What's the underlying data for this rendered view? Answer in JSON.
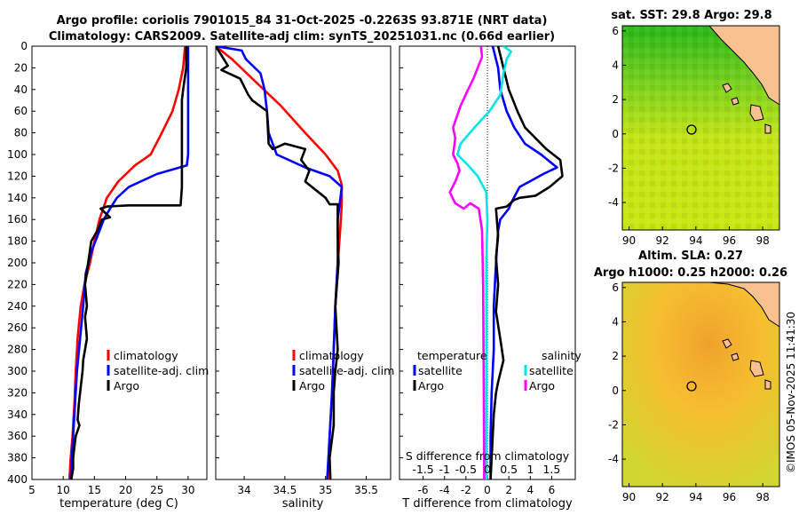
{
  "header": {
    "title_line1": "Argo profile: coriolis 7901015_84 31-Oct-2025 -0.2263S 93.871E (NRT data)",
    "title_line2": "Climatology: CARS2009. Satellite-adj clim: synTS_20251031.nc (0.66d earlier)"
  },
  "depth_axis": {
    "ticks": [
      0,
      20,
      40,
      60,
      80,
      100,
      120,
      140,
      160,
      180,
      200,
      220,
      240,
      260,
      280,
      300,
      320,
      340,
      360,
      380,
      400
    ],
    "ylim": [
      400,
      0
    ]
  },
  "colors": {
    "climatology": "#ff0000",
    "satellite": "#0000ff",
    "argo": "#000000",
    "satellite_s": "#00e5e5",
    "argo_s": "#ff00ff",
    "land": "#f9c18f"
  },
  "chart_data": [
    {
      "id": "temperature",
      "type": "line",
      "xlabel": "temperature (deg C)",
      "xlim": [
        5,
        33
      ],
      "xticks": [
        5,
        10,
        15,
        20,
        25,
        30
      ],
      "legend": [
        "climatology",
        "satellite-adj. clim",
        "Argo"
      ],
      "series": [
        {
          "name": "climatology",
          "color": "#ff0000",
          "x": [
            29.5,
            29.2,
            28.5,
            27.5,
            25.8,
            24,
            21.5,
            18.8,
            17,
            15.8,
            15,
            14.3,
            13.4,
            12.8,
            12.3,
            12,
            11.8,
            11.5,
            11.2,
            11
          ],
          "y": [
            0,
            20,
            40,
            60,
            80,
            100,
            110,
            125,
            140,
            160,
            180,
            200,
            220,
            240,
            270,
            300,
            330,
            360,
            380,
            400
          ]
        },
        {
          "name": "satellite-adj. clim",
          "color": "#0000ff",
          "x": [
            30,
            30,
            30,
            30,
            30,
            30,
            29.8,
            25,
            20.5,
            18.6,
            17.5,
            16.5,
            15.5,
            14.5,
            13.6,
            13.2,
            12.7,
            12.2,
            11.8,
            11.5,
            11.2
          ],
          "y": [
            0,
            20,
            40,
            60,
            80,
            100,
            110,
            118,
            130,
            140,
            150,
            160,
            175,
            190,
            210,
            240,
            270,
            300,
            340,
            370,
            400
          ]
        },
        {
          "name": "Argo",
          "color": "#000000",
          "x": [
            29.7,
            29.7,
            29.2,
            29,
            29,
            29,
            29,
            29,
            28.8,
            20.5,
            17,
            16,
            17.5,
            16.2,
            15.5,
            14.5,
            14,
            13.5,
            13.8,
            13.5,
            13.8,
            13.2,
            13.1,
            12.5,
            12.3,
            12.6,
            12,
            11.8,
            11.6,
            11.6,
            11.3
          ],
          "y": [
            0,
            20,
            40,
            50,
            80,
            100,
            115,
            130,
            147,
            147,
            148,
            150,
            158,
            160,
            170,
            180,
            200,
            220,
            240,
            250,
            270,
            290,
            300,
            330,
            345,
            350,
            360,
            370,
            380,
            390,
            400
          ]
        }
      ]
    },
    {
      "id": "salinity",
      "type": "line",
      "xlabel": "salinity",
      "xlim": [
        33.65,
        35.8
      ],
      "xticks": [
        34,
        34.5,
        35,
        35.5
      ],
      "legend": [
        "climatology",
        "satellite-adj. clim",
        "Argo"
      ],
      "series": [
        {
          "name": "climatology",
          "color": "#ff0000",
          "x": [
            33.65,
            33.85,
            34.1,
            34.45,
            34.75,
            35.0,
            35.15,
            35.2,
            35.2,
            35.18,
            35.15,
            35.12,
            35.1,
            35.08,
            35.05,
            35.03
          ],
          "y": [
            0,
            12,
            30,
            55,
            80,
            100,
            115,
            128,
            145,
            170,
            200,
            240,
            280,
            320,
            360,
            400
          ]
        },
        {
          "name": "satellite-adj. clim",
          "color": "#0000ff",
          "x": [
            33.65,
            33.97,
            34.02,
            34.2,
            34.25,
            34.28,
            34.3,
            34.4,
            34.75,
            35.05,
            35.2,
            35.15,
            35.15,
            35.12,
            35.1,
            35.08,
            35.05,
            35.02
          ],
          "y": [
            0,
            4,
            12,
            25,
            40,
            60,
            80,
            100,
            112,
            120,
            130,
            160,
            200,
            240,
            280,
            320,
            360,
            400
          ]
        },
        {
          "name": "Argo",
          "color": "#000000",
          "x": [
            33.65,
            33.8,
            33.72,
            33.95,
            34.05,
            34.1,
            34.28,
            34.3,
            34.35,
            34.5,
            34.75,
            34.7,
            34.8,
            34.75,
            35.0,
            35.05,
            35.15,
            35.15,
            35.16,
            35.12,
            35.15,
            35.12,
            35.1,
            35.1,
            35.05,
            35.06
          ],
          "y": [
            0,
            18,
            22,
            30,
            45,
            50,
            60,
            90,
            95,
            90,
            95,
            105,
            115,
            125,
            140,
            146,
            146,
            170,
            200,
            240,
            280,
            300,
            320,
            350,
            380,
            400
          ]
        }
      ]
    },
    {
      "id": "difference",
      "type": "line",
      "xlabel": "T difference from climatology",
      "xlim": [
        -8.2,
        8.2
      ],
      "xticks": [
        -6,
        -4,
        -2,
        0,
        2,
        4,
        6
      ],
      "s_label": "S difference from climatology",
      "s_ticks": [
        "-1.5",
        "-1",
        "-0.5",
        "0",
        "0.5",
        "1",
        "1.5"
      ],
      "legend_temperature": {
        "title": "temperature",
        "items": [
          "satellite",
          "Argo"
        ]
      },
      "legend_salinity": {
        "title": "salinity",
        "items": [
          "satellite",
          "Argo"
        ]
      },
      "series": [
        {
          "name": "temperature satellite",
          "color": "#0000ff",
          "x": [
            0.5,
            1,
            1.2,
            1.8,
            2.5,
            3.5,
            5,
            6,
            6.5,
            5.2,
            4.5,
            3,
            2.2,
            2,
            1.2,
            1,
            0.8,
            0.6,
            0.6,
            0.4,
            0.3,
            0.3
          ],
          "y": [
            0,
            20,
            40,
            60,
            75,
            90,
            100,
            108,
            112,
            118,
            122,
            130,
            145,
            150,
            160,
            170,
            200,
            240,
            280,
            320,
            360,
            400
          ]
        },
        {
          "name": "temperature Argo",
          "color": "#000000",
          "x": [
            1,
            1.5,
            2,
            2.8,
            3.5,
            4.8,
            5.5,
            6.8,
            7,
            5.8,
            4.5,
            3,
            2.5,
            1.8,
            0.8,
            1,
            0.8,
            1,
            0.8,
            1.2,
            1.5,
            1,
            0.8,
            0.6,
            0.5,
            0.4,
            0.3
          ],
          "y": [
            0,
            20,
            40,
            60,
            75,
            88,
            95,
            105,
            120,
            130,
            138,
            140,
            142,
            148,
            150,
            175,
            195,
            220,
            245,
            270,
            290,
            310,
            320,
            340,
            360,
            380,
            400
          ]
        },
        {
          "name": "salinity satellite",
          "color": "#00e5e5",
          "x": [
            1.5,
            2.2,
            1.8,
            1.5,
            1.2,
            0.2,
            -1.2,
            -2.5,
            -2.8,
            -1.8,
            -0.9,
            -0.1,
            0,
            -0.1,
            -0.1,
            -0.1
          ],
          "y": [
            0,
            5,
            12,
            25,
            45,
            60,
            75,
            90,
            100,
            110,
            120,
            135,
            160,
            200,
            300,
            400
          ]
        },
        {
          "name": "salinity Argo",
          "color": "#ff00ff",
          "x": [
            -0.6,
            -0.5,
            -0.9,
            -1.3,
            -1.8,
            -2.5,
            -3.2,
            -3.0,
            -3.2,
            -2.8,
            -2.6,
            -3.0,
            -3.5,
            -3.0,
            -2.2,
            -1.6,
            -0.8,
            -0.5,
            -0.4,
            -0.35,
            -0.3
          ],
          "y": [
            0,
            10,
            20,
            30,
            40,
            55,
            75,
            85,
            100,
            108,
            115,
            125,
            135,
            145,
            150,
            145,
            150,
            170,
            220,
            300,
            400
          ]
        }
      ]
    }
  ],
  "sst_map": {
    "title": "sat. SST: 29.8 Argo: 29.8",
    "xticks": [
      "90",
      "92",
      "94",
      "96",
      "98"
    ],
    "yticks": [
      "6",
      "4",
      "2",
      "0",
      "-2",
      "-4"
    ]
  },
  "sla_map": {
    "title_line1": "Altim. SLA: 0.27",
    "title_line2": "Argo h1000: 0.25 h2000: 0.26",
    "xticks": [
      "90",
      "92",
      "94",
      "96",
      "98"
    ],
    "yticks": [
      "6",
      "4",
      "2",
      "0",
      "-2",
      "-4"
    ]
  },
  "watermark": "©IMOS 05-Nov-2025 11:41:30"
}
